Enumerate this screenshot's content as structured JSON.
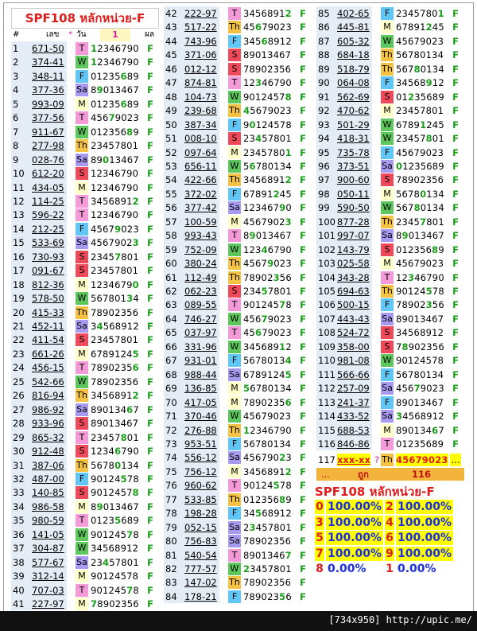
{
  "title": "SPF108 หลักหน่วย-F",
  "header": [
    "#",
    "เลข",
    "*",
    "วัน",
    "1",
    "ผล"
  ],
  "columns": [
    [
      [
        1,
        "671-50",
        "T",
        "12346790",
        "F"
      ],
      [
        2,
        "374-41",
        "W",
        "12346790",
        "F"
      ],
      [
        3,
        "348-11",
        "F",
        "01235689",
        "F"
      ],
      [
        4,
        "377-36",
        "Sa",
        "89013467",
        "F"
      ],
      [
        5,
        "993-09",
        "M",
        "01235689",
        "F"
      ],
      [
        6,
        "377-56",
        "T",
        "45679023",
        "F"
      ],
      [
        7,
        "911-67",
        "W",
        "01235689",
        "F"
      ],
      [
        8,
        "277-98",
        "Th",
        "23457801",
        "F"
      ],
      [
        9,
        "028-76",
        "Sa",
        "89013467",
        "F"
      ],
      [
        10,
        "612-20",
        "S",
        "12346790",
        "F"
      ],
      [
        11,
        "434-05",
        "M",
        "12346790",
        "F"
      ],
      [
        12,
        "114-25",
        "T",
        "34568912",
        "F"
      ],
      [
        13,
        "596-22",
        "T",
        "12346790",
        "F"
      ],
      [
        14,
        "212-25",
        "F",
        "45679023",
        "F"
      ],
      [
        15,
        "533-69",
        "Sa",
        "45679023",
        "F"
      ],
      [
        16,
        "730-93",
        "S",
        "23457801",
        "F"
      ],
      [
        17,
        "091-67",
        "S",
        "23457801",
        "F"
      ],
      [
        18,
        "812-36",
        "M",
        "12346790",
        "F"
      ],
      [
        19,
        "578-50",
        "W",
        "56780134",
        "F"
      ],
      [
        20,
        "415-33",
        "Th",
        "78902356",
        "F"
      ],
      [
        21,
        "452-11",
        "Sa",
        "34568912",
        "F"
      ],
      [
        22,
        "411-54",
        "S",
        "23457801",
        "F"
      ],
      [
        23,
        "661-26",
        "M",
        "67891245",
        "F"
      ],
      [
        24,
        "456-15",
        "T",
        "78902356",
        "F"
      ],
      [
        25,
        "542-66",
        "W",
        "78902356",
        "F"
      ],
      [
        26,
        "816-94",
        "Th",
        "34568912",
        "F"
      ],
      [
        27,
        "986-92",
        "Sa",
        "89013467",
        "F"
      ],
      [
        28,
        "933-96",
        "S",
        "89013467",
        "F"
      ],
      [
        29,
        "865-32",
        "T",
        "23457801",
        "F"
      ],
      [
        30,
        "912-48",
        "S",
        "12346790",
        "F"
      ],
      [
        31,
        "387-06",
        "Th",
        "56780134",
        "F"
      ],
      [
        32,
        "487-00",
        "F",
        "90124578",
        "F"
      ],
      [
        33,
        "140-85",
        "S",
        "90124578",
        "F"
      ],
      [
        34,
        "986-58",
        "M",
        "89013467",
        "F"
      ],
      [
        35,
        "980-59",
        "T",
        "01235689",
        "F"
      ],
      [
        36,
        "141-05",
        "W",
        "90124578",
        "F"
      ],
      [
        37,
        "304-87",
        "W",
        "34568912",
        "F"
      ],
      [
        38,
        "577-67",
        "Sa",
        "23457801",
        "F"
      ],
      [
        39,
        "312-14",
        "M",
        "90124578",
        "F"
      ],
      [
        40,
        "707-03",
        "T",
        "90124578",
        "F"
      ],
      [
        41,
        "227-97",
        "M",
        "78902356",
        "F"
      ]
    ],
    [
      [
        42,
        "222-97",
        "T",
        "34568912",
        "F"
      ],
      [
        43,
        "517-22",
        "Th",
        "45679023",
        "F"
      ],
      [
        44,
        "743-96",
        "F",
        "34568912",
        "F"
      ],
      [
        45,
        "371-06",
        "S",
        "89013467",
        "F"
      ],
      [
        46,
        "012-12",
        "S",
        "78902356",
        "F"
      ],
      [
        47,
        "874-81",
        "T",
        "12346790",
        "F"
      ],
      [
        48,
        "104-73",
        "W",
        "90124578",
        "F"
      ],
      [
        49,
        "239-68",
        "Th",
        "45679023",
        "F"
      ],
      [
        50,
        "387-34",
        "F",
        "90124578",
        "F"
      ],
      [
        51,
        "008-10",
        "S",
        "23457801",
        "F"
      ],
      [
        52,
        "097-64",
        "M",
        "23457801",
        "F"
      ],
      [
        53,
        "656-11",
        "W",
        "56780134",
        "F"
      ],
      [
        54,
        "422-66",
        "Th",
        "34568912",
        "F"
      ],
      [
        55,
        "372-02",
        "F",
        "67891245",
        "F"
      ],
      [
        56,
        "377-42",
        "Sa",
        "12346790",
        "F"
      ],
      [
        57,
        "100-59",
        "M",
        "45679023",
        "F"
      ],
      [
        58,
        "993-43",
        "T",
        "89013467",
        "F"
      ],
      [
        59,
        "752-09",
        "W",
        "12346790",
        "F"
      ],
      [
        60,
        "380-24",
        "Th",
        "45679023",
        "F"
      ],
      [
        61,
        "112-49",
        "Th",
        "78902356",
        "F"
      ],
      [
        62,
        "062-23",
        "S",
        "23457801",
        "F"
      ],
      [
        63,
        "089-55",
        "T",
        "90124578",
        "F"
      ],
      [
        64,
        "746-27",
        "W",
        "45679023",
        "F"
      ],
      [
        65,
        "037-97",
        "T",
        "45679023",
        "F"
      ],
      [
        66,
        "331-96",
        "W",
        "34568912",
        "F"
      ],
      [
        67,
        "931-01",
        "F",
        "56780134",
        "F"
      ],
      [
        68,
        "988-44",
        "Sa",
        "67891245",
        "F"
      ],
      [
        69,
        "136-85",
        "M",
        "56780134",
        "F"
      ],
      [
        70,
        "417-05",
        "M",
        "78902356",
        "F"
      ],
      [
        71,
        "370-46",
        "W",
        "45679023",
        "F"
      ],
      [
        72,
        "276-88",
        "Th",
        "12346790",
        "F"
      ],
      [
        73,
        "953-51",
        "F",
        "56780134",
        "F"
      ],
      [
        74,
        "556-12",
        "Sa",
        "45679023",
        "F"
      ],
      [
        75,
        "756-12",
        "M",
        "34568912",
        "F"
      ],
      [
        76,
        "960-62",
        "T",
        "90124578",
        "F"
      ],
      [
        77,
        "533-85",
        "Th",
        "01235689",
        "F"
      ],
      [
        78,
        "198-28",
        "F",
        "34568912",
        "F"
      ],
      [
        79,
        "052-15",
        "Sa",
        "23457801",
        "F"
      ],
      [
        80,
        "756-83",
        "Sa",
        "78902356",
        "F"
      ],
      [
        81,
        "540-54",
        "T",
        "89013467",
        "F"
      ],
      [
        82,
        "777-57",
        "W",
        "23457801",
        "F"
      ],
      [
        83,
        "147-02",
        "Th",
        "78902356",
        "F"
      ],
      [
        84,
        "178-21",
        "F",
        "78902356",
        "F"
      ]
    ],
    [
      [
        85,
        "402-65",
        "F",
        "23457801",
        "F"
      ],
      [
        86,
        "445-81",
        "M",
        "67891245",
        "F"
      ],
      [
        87,
        "605-32",
        "W",
        "45679023",
        "F"
      ],
      [
        88,
        "684-18",
        "Th",
        "56780134",
        "F"
      ],
      [
        89,
        "518-79",
        "Th",
        "56780134",
        "F"
      ],
      [
        90,
        "064-08",
        "F",
        "34568912",
        "F"
      ],
      [
        91,
        "562-69",
        "S",
        "01235689",
        "F"
      ],
      [
        92,
        "470-62",
        "M",
        "23457801",
        "F"
      ],
      [
        93,
        "501-29",
        "W",
        "67891245",
        "F"
      ],
      [
        94,
        "418-31",
        "W",
        "23457801",
        "F"
      ],
      [
        95,
        "735-78",
        "F",
        "45679023",
        "F"
      ],
      [
        96,
        "373-51",
        "Sa",
        "01235689",
        "F"
      ],
      [
        97,
        "900-60",
        "S",
        "78902356",
        "F"
      ],
      [
        98,
        "050-11",
        "M",
        "56780134",
        "F"
      ],
      [
        99,
        "590-50",
        "W",
        "56780134",
        "F"
      ],
      [
        100,
        "877-28",
        "Th",
        "23457801",
        "F"
      ],
      [
        101,
        "997-07",
        "Sa",
        "89013467",
        "F"
      ],
      [
        102,
        "143-79",
        "S",
        "01235689",
        "F"
      ],
      [
        103,
        "025-58",
        "M",
        "45679023",
        "F"
      ],
      [
        104,
        "343-28",
        "T",
        "12346790",
        "F"
      ],
      [
        105,
        "694-63",
        "Th",
        "90124578",
        "F"
      ],
      [
        106,
        "500-15",
        "F",
        "78902356",
        "F"
      ],
      [
        107,
        "443-43",
        "Sa",
        "89013467",
        "F"
      ],
      [
        108,
        "524-72",
        "S",
        "34568912",
        "F"
      ],
      [
        109,
        "358-00",
        "S",
        "78902356",
        "F"
      ],
      [
        110,
        "981-08",
        "W",
        "90124578",
        "F"
      ],
      [
        111,
        "566-66",
        "F",
        "56780134",
        "F"
      ],
      [
        112,
        "257-09",
        "Sa",
        "45679023",
        "F"
      ],
      [
        113,
        "241-37",
        "F",
        "89013467",
        "F"
      ],
      [
        114,
        "433-52",
        "Sa",
        "34568912",
        "F"
      ],
      [
        115,
        "688-53",
        "M",
        "89013467",
        "F"
      ],
      [
        116,
        "846-86",
        "T",
        "01235689",
        "F"
      ]
    ]
  ],
  "next_row": {
    "number": 117,
    "code": "xxx-xx",
    "mark": "?",
    "day": "Th",
    "digits": "45679023",
    "result": "..."
  },
  "total_row": {
    "number": "...",
    "label": "ถูก",
    "count": 116
  },
  "summary": {
    "title": "SPF108 หลักหน่วย-F",
    "lines": [
      [
        {
          "digit": "0",
          "rate": "100.00%"
        },
        {
          "digit": "2",
          "rate": "100.00%"
        }
      ],
      [
        {
          "digit": "3",
          "rate": "100.00%"
        },
        {
          "digit": "4",
          "rate": "100.00%"
        }
      ],
      [
        {
          "digit": "5",
          "rate": "100.00%"
        },
        {
          "digit": "6",
          "rate": "100.00%"
        }
      ],
      [
        {
          "digit": "7",
          "rate": "100.00%"
        },
        {
          "digit": "9",
          "rate": "100.00%"
        }
      ],
      [
        {
          "digit": "8",
          "rate": "0.00%"
        },
        {
          "digit": "1",
          "rate": "0.00%"
        }
      ]
    ]
  },
  "watermark": "[734x950] http://upic.me/"
}
